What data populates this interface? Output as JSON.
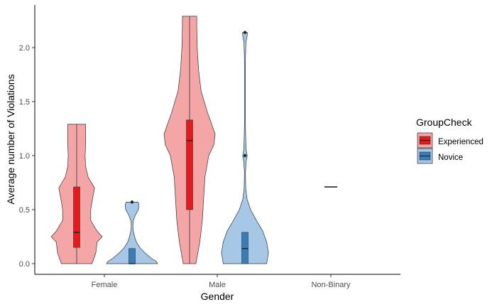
{
  "chart_data": {
    "type": "violin-box",
    "xlabel": "Gender",
    "ylabel": "Average number of Violations",
    "categories": [
      "Female",
      "Male",
      "Non-Binary"
    ],
    "yticks": [
      "0.0",
      "0.5",
      "1.0",
      "1.5",
      "2.0"
    ],
    "ylim": [
      -0.1,
      2.3
    ],
    "grid": false,
    "legend": {
      "title": "GroupCheck",
      "position": "right",
      "entries": [
        "Experienced",
        "Novice"
      ]
    },
    "series": [
      {
        "name": "Experienced",
        "violin_color": "#f4a6a6",
        "box_color": "#e41a1c",
        "groups": [
          {
            "category": "Female",
            "box": {
              "q1": 0.15,
              "median": 0.29,
              "q3": 0.71
            },
            "whiskers": [
              0.0,
              1.29
            ],
            "outliers": [],
            "violin": [
              [
                0.0,
                0.6
              ],
              [
                0.1,
                0.75
              ],
              [
                0.2,
                0.8
              ],
              [
                0.25,
                1.0
              ],
              [
                0.3,
                0.8
              ],
              [
                0.4,
                0.55
              ],
              [
                0.5,
                0.55
              ],
              [
                0.6,
                0.62
              ],
              [
                0.7,
                0.7
              ],
              [
                0.8,
                0.45
              ],
              [
                0.9,
                0.35
              ],
              [
                1.0,
                0.33
              ],
              [
                1.1,
                0.35
              ],
              [
                1.2,
                0.35
              ],
              [
                1.29,
                0.35
              ]
            ]
          },
          {
            "category": "Male",
            "box": {
              "q1": 0.5,
              "median": 1.14,
              "q3": 1.33
            },
            "whiskers": [
              0.0,
              2.29
            ],
            "outliers": [],
            "violin": [
              [
                0.0,
                0.25
              ],
              [
                0.2,
                0.4
              ],
              [
                0.4,
                0.5
              ],
              [
                0.6,
                0.55
              ],
              [
                0.8,
                0.6
              ],
              [
                1.0,
                0.75
              ],
              [
                1.1,
                0.95
              ],
              [
                1.2,
                1.0
              ],
              [
                1.3,
                0.85
              ],
              [
                1.4,
                0.7
              ],
              [
                1.6,
                0.45
              ],
              [
                1.8,
                0.35
              ],
              [
                2.0,
                0.3
              ],
              [
                2.2,
                0.28
              ],
              [
                2.29,
                0.28
              ]
            ]
          },
          {
            "category": "Non-Binary",
            "box": {
              "q1": 0.71,
              "median": 0.71,
              "q3": 0.71
            },
            "whiskers": [
              0.71,
              0.71
            ],
            "outliers": [],
            "violin": []
          }
        ]
      },
      {
        "name": "Novice",
        "violin_color": "#a6c8e6",
        "box_color": "#377eb8",
        "groups": [
          {
            "category": "Female",
            "box": {
              "q1": 0.0,
              "median": 0.0,
              "q3": 0.14
            },
            "whiskers": [
              0.0,
              0.14
            ],
            "outliers": [
              0.57
            ],
            "violin": [
              [
                0.0,
                1.0
              ],
              [
                0.02,
                0.95
              ],
              [
                0.05,
                0.75
              ],
              [
                0.1,
                0.5
              ],
              [
                0.15,
                0.3
              ],
              [
                0.2,
                0.17
              ],
              [
                0.25,
                0.1
              ],
              [
                0.3,
                0.05
              ],
              [
                0.35,
                0.03
              ],
              [
                0.4,
                0.05
              ],
              [
                0.45,
                0.13
              ],
              [
                0.5,
                0.25
              ],
              [
                0.55,
                0.27
              ],
              [
                0.57,
                0.23
              ]
            ]
          },
          {
            "category": "Male",
            "box": {
              "q1": 0.0,
              "median": 0.14,
              "q3": 0.29
            },
            "whiskers": [
              0.0,
              0.29
            ],
            "outliers": [
              1.0,
              2.14
            ],
            "violin": [
              [
                0.0,
                0.85
              ],
              [
                0.1,
                0.92
              ],
              [
                0.2,
                0.85
              ],
              [
                0.3,
                0.7
              ],
              [
                0.4,
                0.45
              ],
              [
                0.5,
                0.22
              ],
              [
                0.6,
                0.08
              ],
              [
                0.7,
                0.03
              ],
              [
                0.85,
                0.02
              ],
              [
                0.95,
                0.05
              ],
              [
                1.0,
                0.09
              ],
              [
                1.05,
                0.05
              ],
              [
                1.15,
                0.03
              ],
              [
                1.3,
                0.02
              ],
              [
                1.6,
                0.02
              ],
              [
                1.9,
                0.02
              ],
              [
                2.05,
                0.04
              ],
              [
                2.1,
                0.08
              ],
              [
                2.14,
                0.1
              ]
            ]
          }
        ]
      }
    ]
  }
}
